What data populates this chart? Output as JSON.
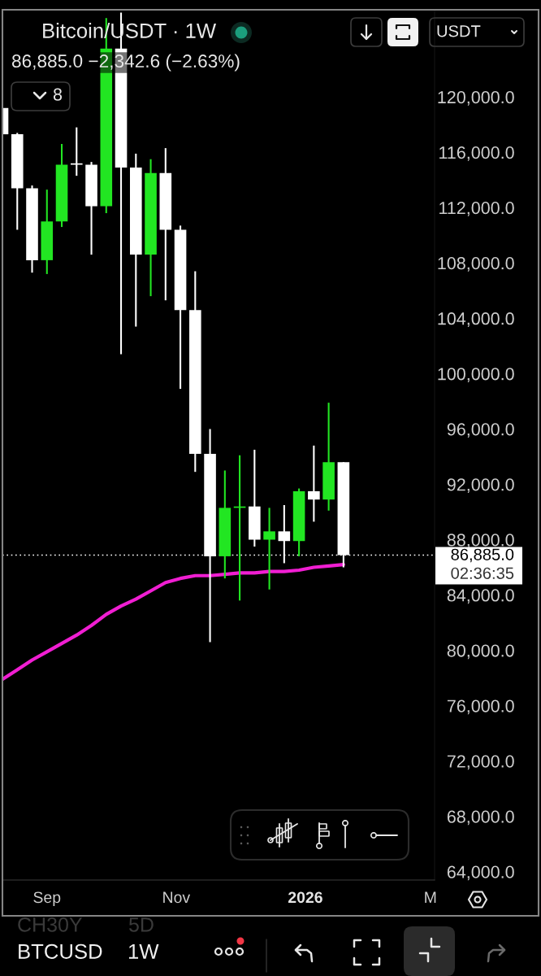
{
  "chart_data": {
    "type": "candlestick",
    "title": "Bitcoin/USDT · 1W",
    "subtitle": "86,885.0 −2,342.6 (−2.63%)",
    "x": [
      "2025-08-11",
      "2025-08-18",
      "2025-08-25",
      "2025-09-01",
      "2025-09-08",
      "2025-09-15",
      "2025-09-22",
      "2025-09-29",
      "2025-10-06",
      "2025-10-13",
      "2025-10-20",
      "2025-10-27",
      "2025-11-03",
      "2025-11-10",
      "2025-11-17",
      "2025-11-24",
      "2025-12-01",
      "2025-12-08",
      "2025-12-15",
      "2025-12-22",
      "2025-12-29",
      "2026-01-05",
      "2026-01-12",
      "2026-01-19"
    ],
    "ohlc": [
      [
        119200,
        119200,
        117300,
        117300
      ],
      [
        117300,
        117400,
        110400,
        113400
      ],
      [
        113400,
        113600,
        107300,
        108200
      ],
      [
        108200,
        113300,
        107200,
        111000
      ],
      [
        111000,
        116600,
        110600,
        115100
      ],
      [
        115200,
        117800,
        114300,
        115100
      ],
      [
        115100,
        115300,
        108600,
        112100
      ],
      [
        112100,
        125700,
        111600,
        123500
      ],
      [
        123500,
        126100,
        101400,
        114900
      ],
      [
        114900,
        115900,
        103400,
        108600
      ],
      [
        108600,
        115500,
        105600,
        114500
      ],
      [
        114500,
        116300,
        105300,
        110400
      ],
      [
        110400,
        110700,
        98900,
        104600
      ],
      [
        104600,
        107400,
        92900,
        94200
      ],
      [
        94200,
        96000,
        80600,
        86800
      ],
      [
        86800,
        93000,
        85200,
        90300
      ],
      [
        90300,
        94100,
        83600,
        90400
      ],
      [
        90400,
        94500,
        87500,
        88000
      ],
      [
        88000,
        90300,
        84400,
        88600
      ],
      [
        88600,
        90500,
        86300,
        87900
      ],
      [
        87900,
        91700,
        86800,
        91500
      ],
      [
        91500,
        94800,
        89300,
        90900
      ],
      [
        90900,
        97900,
        90100,
        93600
      ],
      [
        93600,
        93600,
        86000,
        86885
      ]
    ],
    "colors": [
      "#ffffff",
      "#ffffff",
      "#ffffff",
      "#22e622",
      "#22e622",
      "#ffffff",
      "#ffffff",
      "#22e622",
      "#ffffff",
      "#ffffff",
      "#22e622",
      "#ffffff",
      "#ffffff",
      "#ffffff",
      "#ffffff",
      "#22e622",
      "#22e622",
      "#ffffff",
      "#22e622",
      "#ffffff",
      "#22e622",
      "#ffffff",
      "#22e622",
      "#ffffff"
    ],
    "series": [
      {
        "type": "line",
        "color": "#f01ed2",
        "values": [
          77900,
          78600,
          79300,
          79900,
          80500,
          81100,
          81800,
          82600,
          83200,
          83700,
          84300,
          84900,
          85200,
          85400,
          85400,
          85500,
          85600,
          85600,
          85700,
          85700,
          85800,
          86000,
          86100,
          86200
        ]
      }
    ],
    "xlim": [
      "2025-08-11",
      "2026-03-03"
    ],
    "xticks": [
      {
        "value": "2025-09-01",
        "label": "Sep"
      },
      {
        "value": "2025-11-01",
        "label": "Nov"
      },
      {
        "value": "2026-01-01",
        "label": "2026"
      },
      {
        "value": "2026-03-01",
        "label": "M"
      }
    ],
    "ylim": [
      63400,
      126300
    ],
    "yticks": [
      {
        "value": 64000,
        "label": "64,000.0"
      },
      {
        "value": 68000,
        "label": "68,000.0"
      },
      {
        "value": 72000,
        "label": "72,000.0"
      },
      {
        "value": 76000,
        "label": "76,000.0"
      },
      {
        "value": 80000,
        "label": "80,000.0"
      },
      {
        "value": 84000,
        "label": "84,000.0"
      },
      {
        "value": 88000,
        "label": "88,000.0"
      },
      {
        "value": 92000,
        "label": "92,000.0"
      },
      {
        "value": 96000,
        "label": "96,000.0"
      },
      {
        "value": 100000,
        "label": "100,000.0"
      },
      {
        "value": 104000,
        "label": "104,000.0"
      },
      {
        "value": 108000,
        "label": "108,000.0"
      },
      {
        "value": 112000,
        "label": "112,000.0"
      },
      {
        "value": 116000,
        "label": "116,000.0"
      },
      {
        "value": 120000,
        "label": "120,000.0"
      }
    ],
    "ref_lines": [
      {
        "axis": "y",
        "value": 86885,
        "label": "86,885.0",
        "line_style": "dotted",
        "color": "#ffffff"
      }
    ],
    "annotations": [
      "8",
      "USDT",
      "02:36:35",
      "CH30Y",
      "5D",
      "BTCUSD",
      "1W"
    ]
  }
}
